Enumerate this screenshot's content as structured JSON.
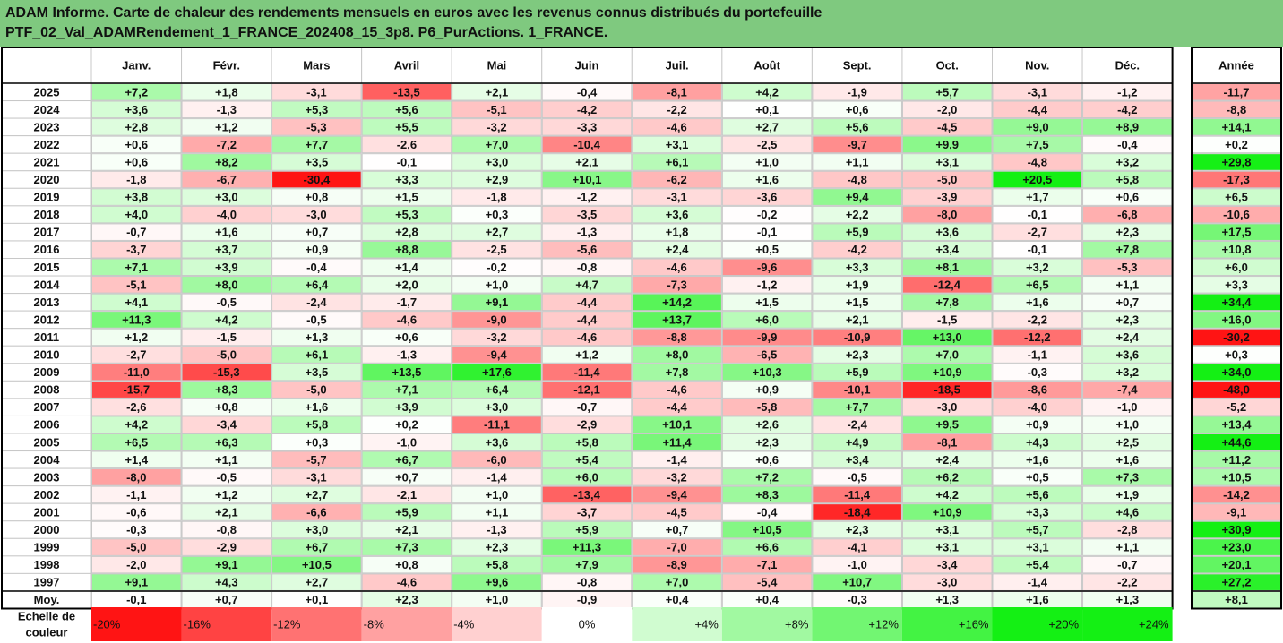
{
  "title": {
    "line1": "ADAM Informe. Carte de chaleur des rendements mensuels en euros avec les revenus connus distribués du portefeuille",
    "line2": "PTF_02_Val_ADAMRendement_1_FRANCE_202408_15_3p8. P6_PurActions. 1_FRANCE."
  },
  "chart_data": {
    "type": "heatmap",
    "columns": [
      "Janv.",
      "Févr.",
      "Mars",
      "Avril",
      "Mai",
      "Juin",
      "Juil.",
      "Août",
      "Sept.",
      "Oct.",
      "Nov.",
      "Déc."
    ],
    "year_column": "Année",
    "rows": [
      {
        "label": "2025",
        "values": [
          "+7,2",
          "+1,8",
          "-3,1",
          "-13,5",
          "+2,1",
          "-0,4",
          "-8,1",
          "+4,2",
          "-1,9",
          "+5,7",
          "-3,1",
          "-1,2"
        ],
        "year": "-11,7"
      },
      {
        "label": "2024",
        "values": [
          "+3,6",
          "-1,3",
          "+5,3",
          "+5,6",
          "-5,1",
          "-4,2",
          "-2,2",
          "+0,1",
          "+0,6",
          "-2,0",
          "-4,4",
          "-4,2"
        ],
        "year": "-8,8"
      },
      {
        "label": "2023",
        "values": [
          "+2,8",
          "+1,2",
          "-5,3",
          "+5,5",
          "-3,2",
          "-3,3",
          "-4,6",
          "+2,7",
          "+5,6",
          "-4,5",
          "+9,0",
          "+8,9"
        ],
        "year": "+14,1"
      },
      {
        "label": "2022",
        "values": [
          "+0,6",
          "-7,2",
          "+7,7",
          "-2,6",
          "+7,0",
          "-10,4",
          "+3,1",
          "-2,5",
          "-9,7",
          "+9,9",
          "+7,5",
          "-0,4"
        ],
        "year": "+0,2"
      },
      {
        "label": "2021",
        "values": [
          "+0,6",
          "+8,2",
          "+3,5",
          "-0,1",
          "+3,0",
          "+2,1",
          "+6,1",
          "+1,0",
          "+1,1",
          "+3,1",
          "-4,8",
          "+3,2"
        ],
        "year": "+29,8"
      },
      {
        "label": "2020",
        "values": [
          "-1,8",
          "-6,7",
          "-30,4",
          "+3,3",
          "+2,9",
          "+10,1",
          "-6,2",
          "+1,6",
          "-4,8",
          "-5,0",
          "+20,5",
          "+5,8"
        ],
        "year": "-17,3"
      },
      {
        "label": "2019",
        "values": [
          "+3,8",
          "+3,0",
          "+0,8",
          "+1,5",
          "-1,8",
          "-1,2",
          "-3,1",
          "-3,6",
          "+9,4",
          "-3,9",
          "+1,7",
          "+0,6"
        ],
        "year": "+6,5"
      },
      {
        "label": "2018",
        "values": [
          "+4,0",
          "-4,0",
          "-3,0",
          "+5,3",
          "+0,3",
          "-3,5",
          "+3,6",
          "-0,2",
          "+2,2",
          "-8,0",
          "-0,1",
          "-6,8"
        ],
        "year": "-10,6"
      },
      {
        "label": "2017",
        "values": [
          "-0,7",
          "+1,6",
          "+0,7",
          "+2,8",
          "+2,7",
          "-1,3",
          "+1,8",
          "-0,1",
          "+5,9",
          "+3,6",
          "-2,7",
          "+2,3"
        ],
        "year": "+17,5"
      },
      {
        "label": "2016",
        "values": [
          "-3,7",
          "+3,7",
          "+0,9",
          "+8,8",
          "-2,5",
          "-5,6",
          "+2,4",
          "+0,5",
          "-4,2",
          "+3,4",
          "-0,1",
          "+7,8"
        ],
        "year": "+10,8"
      },
      {
        "label": "2015",
        "values": [
          "+7,1",
          "+3,9",
          "-0,4",
          "+1,4",
          "-0,2",
          "-0,8",
          "-4,6",
          "-9,6",
          "+3,3",
          "+8,1",
          "+3,2",
          "-5,3"
        ],
        "year": "+6,0"
      },
      {
        "label": "2014",
        "values": [
          "-5,1",
          "+8,0",
          "+6,4",
          "+2,0",
          "+1,0",
          "+4,7",
          "-7,3",
          "-1,2",
          "+1,9",
          "-12,4",
          "+6,5",
          "+1,1"
        ],
        "year": "+3,3"
      },
      {
        "label": "2013",
        "values": [
          "+4,1",
          "-0,5",
          "-2,4",
          "-1,7",
          "+9,1",
          "-4,4",
          "+14,2",
          "+1,5",
          "+1,5",
          "+7,8",
          "+1,6",
          "+0,7"
        ],
        "year": "+34,4"
      },
      {
        "label": "2012",
        "values": [
          "+11,3",
          "+4,2",
          "-0,5",
          "-4,6",
          "-9,0",
          "-4,4",
          "+13,7",
          "+6,0",
          "+2,1",
          "-1,5",
          "-2,2",
          "+2,3"
        ],
        "year": "+16,0"
      },
      {
        "label": "2011",
        "values": [
          "+1,2",
          "-1,5",
          "+1,3",
          "+0,6",
          "-3,2",
          "-4,6",
          "-8,8",
          "-9,9",
          "-10,9",
          "+13,0",
          "-12,2",
          "+2,4"
        ],
        "year": "-30,2"
      },
      {
        "label": "2010",
        "values": [
          "-2,7",
          "-5,0",
          "+6,1",
          "-1,3",
          "-9,4",
          "+1,2",
          "+8,0",
          "-6,5",
          "+2,3",
          "+7,0",
          "-1,1",
          "+3,6"
        ],
        "year": "+0,3"
      },
      {
        "label": "2009",
        "values": [
          "-11,0",
          "-15,3",
          "+3,5",
          "+13,5",
          "+17,6",
          "-11,4",
          "+7,8",
          "+10,3",
          "+5,9",
          "+10,9",
          "-0,3",
          "+3,2"
        ],
        "year": "+34,0"
      },
      {
        "label": "2008",
        "values": [
          "-15,7",
          "+8,3",
          "-5,0",
          "+7,1",
          "+6,4",
          "-12,1",
          "-4,6",
          "+0,9",
          "-10,1",
          "-18,5",
          "-8,6",
          "-7,4"
        ],
        "year": "-48,0"
      },
      {
        "label": "2007",
        "values": [
          "-2,6",
          "+0,8",
          "+1,6",
          "+3,9",
          "+3,0",
          "-0,7",
          "-4,4",
          "-5,8",
          "+7,7",
          "-3,0",
          "-4,0",
          "-1,0"
        ],
        "year": "-5,2"
      },
      {
        "label": "2006",
        "values": [
          "+4,2",
          "-3,4",
          "+5,8",
          "+0,2",
          "-11,1",
          "-2,9",
          "+10,1",
          "+2,6",
          "-2,4",
          "+9,5",
          "+0,9",
          "+1,0"
        ],
        "year": "+13,4"
      },
      {
        "label": "2005",
        "values": [
          "+6,5",
          "+6,3",
          "+0,3",
          "-1,0",
          "+3,6",
          "+5,8",
          "+11,4",
          "+2,3",
          "+4,9",
          "-8,1",
          "+4,3",
          "+2,5"
        ],
        "year": "+44,6"
      },
      {
        "label": "2004",
        "values": [
          "+1,4",
          "+1,1",
          "-5,7",
          "+6,7",
          "-6,0",
          "+5,4",
          "-1,4",
          "+0,6",
          "+3,4",
          "+2,4",
          "+1,6",
          "+1,6"
        ],
        "year": "+11,2"
      },
      {
        "label": "2003",
        "values": [
          "-8,0",
          "-0,5",
          "-3,1",
          "+0,7",
          "-1,4",
          "+6,0",
          "-3,2",
          "+7,2",
          "-0,5",
          "+6,2",
          "+0,5",
          "+7,3"
        ],
        "year": "+10,5"
      },
      {
        "label": "2002",
        "values": [
          "-1,1",
          "+1,2",
          "+2,7",
          "-2,1",
          "+1,0",
          "-13,4",
          "-9,4",
          "+8,3",
          "-11,4",
          "+4,2",
          "+5,6",
          "+1,9"
        ],
        "year": "-14,2"
      },
      {
        "label": "2001",
        "values": [
          "-0,6",
          "+2,1",
          "-6,6",
          "+5,9",
          "+1,1",
          "-3,7",
          "-4,5",
          "-0,4",
          "-18,4",
          "+10,9",
          "+3,3",
          "+4,6"
        ],
        "year": "-9,1"
      },
      {
        "label": "2000",
        "values": [
          "-0,3",
          "-0,8",
          "+3,0",
          "+2,1",
          "-1,3",
          "+5,9",
          "+0,7",
          "+10,5",
          "+2,3",
          "+3,1",
          "+5,7",
          "-2,8"
        ],
        "year": "+30,9"
      },
      {
        "label": "1999",
        "values": [
          "-5,0",
          "-2,9",
          "+6,7",
          "+7,3",
          "+2,3",
          "+11,3",
          "-7,0",
          "+6,6",
          "-4,1",
          "+3,1",
          "+3,1",
          "+1,1"
        ],
        "year": "+23,0"
      },
      {
        "label": "1998",
        "values": [
          "-2,0",
          "+9,1",
          "+10,5",
          "+0,8",
          "+5,8",
          "+7,9",
          "-8,9",
          "-7,1",
          "-1,0",
          "-3,4",
          "+5,4",
          "-0,7"
        ],
        "year": "+20,1"
      },
      {
        "label": "1997",
        "values": [
          "+9,1",
          "+4,3",
          "+2,7",
          "-4,6",
          "+9,6",
          "-0,8",
          "+7,0",
          "-5,4",
          "+10,7",
          "-3,0",
          "-1,4",
          "-2,2"
        ],
        "year": "+27,2"
      }
    ],
    "average": {
      "label": "Moy.",
      "values": [
        "-0,1",
        "+0,7",
        "+0,1",
        "+2,3",
        "+1,0",
        "-0,9",
        "+0,4",
        "+0,4",
        "-0,3",
        "+1,3",
        "+1,6",
        "+1,3"
      ],
      "year": "+8,1"
    },
    "color_scale": {
      "label_line1": "Echelle de",
      "label_line2": "couleur",
      "stops": [
        "-20%",
        "-16%",
        "-12%",
        "-8%",
        "-4%",
        "0%",
        "+4%",
        "+8%",
        "+12%",
        "+16%",
        "+20%",
        "+24%"
      ],
      "stop_values": [
        -20,
        -16,
        -12,
        -8,
        -4,
        0,
        4,
        8,
        12,
        16,
        20,
        24
      ]
    },
    "colors": {
      "max_negative": "#ff1a1a",
      "neutral": "#ffffff",
      "max_positive": "#1aee1a",
      "grid": "#c8c8c8",
      "border": "#000000"
    }
  }
}
